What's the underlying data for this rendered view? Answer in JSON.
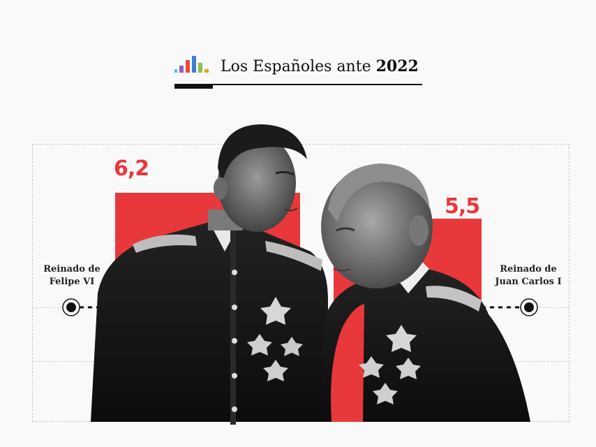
{
  "header": {
    "title_prefix": "Los Españoles ante",
    "title_year": "2022",
    "logo_colors": [
      "#4fc3d9",
      "#9b59b6",
      "#e74c3c",
      "#3f7fd1",
      "#8bc34a",
      "#f39c12"
    ]
  },
  "photo": {
    "left_figure": "felipe-vi-photo",
    "right_figure": "juan-carlos-i-photo",
    "tone": "black-and-white"
  },
  "chart_data": {
    "type": "bar",
    "title": "Los Españoles ante 2022",
    "categories": [
      "Reinado de Felipe VI",
      "Reinado de Juan Carlos I"
    ],
    "category_lines": [
      [
        "Reinado de",
        "Felipe VI"
      ],
      [
        "Reinado de",
        "Juan Carlos I"
      ]
    ],
    "values": [
      6.2,
      5.5
    ],
    "value_labels": [
      "6,2",
      "5,5"
    ],
    "ylim": [
      0,
      10
    ],
    "bar_color": "#e8383b",
    "xlabel": "",
    "ylabel": ""
  }
}
